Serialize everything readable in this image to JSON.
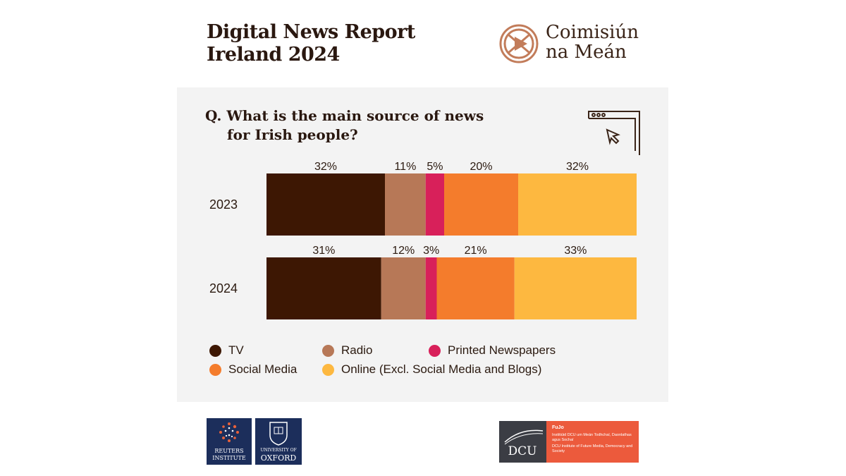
{
  "header": {
    "title_line1": "Digital News Report",
    "title_line2": "Ireland 2024",
    "brand_line1": "Coimisiún",
    "brand_line2": "na Meán"
  },
  "question": {
    "line1": "Q. What is the main source of news",
    "line2": "for Irish people?"
  },
  "chart_data": {
    "type": "bar",
    "orientation": "horizontal-stacked-100",
    "categories": [
      "2023",
      "2024"
    ],
    "series": [
      {
        "name": "TV",
        "values": [
          32,
          31
        ],
        "color": "#3d1703"
      },
      {
        "name": "Radio",
        "values": [
          11,
          12
        ],
        "color": "#b77857"
      },
      {
        "name": "Printed Newspapers",
        "values": [
          5,
          3
        ],
        "color": "#d8205a"
      },
      {
        "name": "Social Media",
        "values": [
          20,
          21
        ],
        "color": "#f47c2c"
      },
      {
        "name": "Online (Excl. Social Media and Blogs)",
        "values": [
          32,
          33
        ],
        "color": "#fdb840"
      }
    ],
    "labels": [
      [
        "32%",
        "11%",
        "5%",
        "20%",
        "32%"
      ],
      [
        "31%",
        "12%",
        "3%",
        "21%",
        "33%"
      ]
    ],
    "legend_position": "bottom"
  },
  "footer": {
    "reuters_line1": "REUTERS",
    "reuters_line2": "INSTITUTE",
    "oxford_line1": "UNIVERSITY OF",
    "oxford_line2": "OXFORD",
    "dcu_name": "DCU",
    "fuju": "FuJo",
    "fuju_irish": "Institiúid DCU um Meán Todhchaí, Daonlathas agus Sochaí",
    "fuju_english": "DCU Institute of Future Media, Democracy and Society"
  }
}
